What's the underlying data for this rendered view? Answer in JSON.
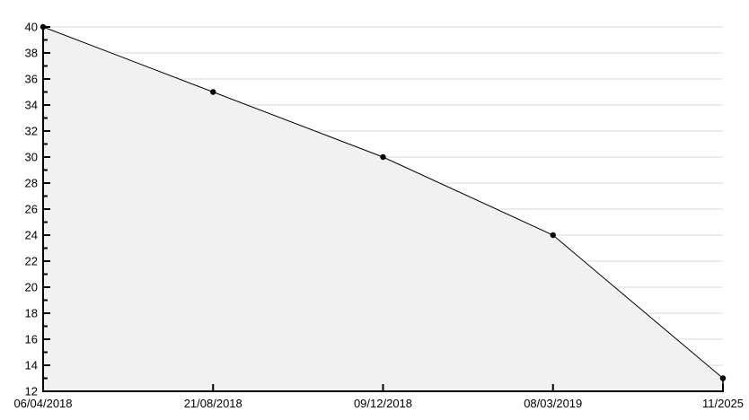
{
  "chart_data": {
    "type": "area",
    "title": "",
    "xlabel": "",
    "ylabel": "",
    "categories": [
      "06/04/2018",
      "21/08/2018",
      "09/12/2018",
      "08/03/2019",
      "11/2025"
    ],
    "values": [
      40,
      35,
      30,
      24,
      13
    ],
    "ylim": [
      12,
      40
    ],
    "y_major_step": 2,
    "y_minor_step": 1,
    "y_tick_labels": [
      "12",
      "14",
      "16",
      "18",
      "20",
      "22",
      "24",
      "26",
      "28",
      "30",
      "32",
      "34",
      "36",
      "38",
      "40"
    ],
    "grid": "horizontal-major",
    "legend": "none",
    "markers": "filled-dot",
    "colors": {
      "line": "#000000",
      "marker": "#000000",
      "area_fill": "#f1f1f1",
      "gridline": "#d9d9d9",
      "axis": "#000000",
      "text": "#000000",
      "background": "#ffffff"
    }
  }
}
